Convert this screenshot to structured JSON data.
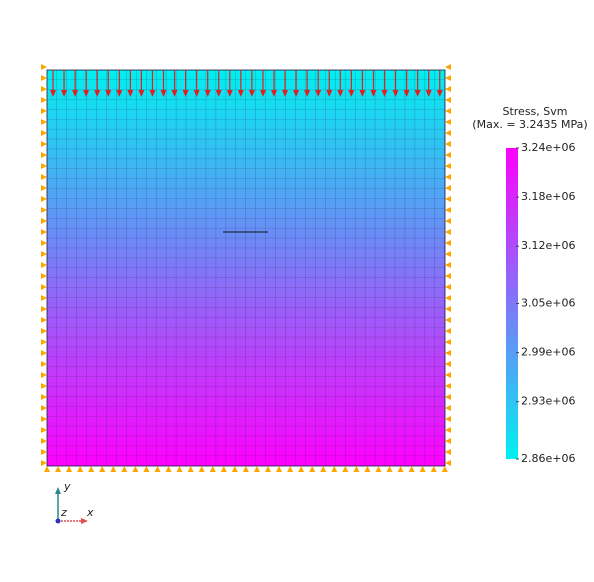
{
  "colorbar": {
    "title": "Stress, Svm",
    "subtitle": "(Max. = 3.2435 MPa)",
    "lim": [
      2860000,
      3240000
    ],
    "ticks": [
      {
        "value": 2860000,
        "label": "2.86e+06"
      },
      {
        "value": 2930000,
        "label": "2.93e+06"
      },
      {
        "value": 2990000,
        "label": "2.99e+06"
      },
      {
        "value": 3050000,
        "label": "3.05e+06"
      },
      {
        "value": 3120000,
        "label": "3.12e+06"
      },
      {
        "value": 3180000,
        "label": "3.18e+06"
      },
      {
        "value": 3240000,
        "label": "3.24e+06"
      }
    ],
    "colormap": [
      "#00f0f0",
      "#ff00ff"
    ]
  },
  "triad": {
    "y": "y",
    "z": "z",
    "x": "x"
  }
}
